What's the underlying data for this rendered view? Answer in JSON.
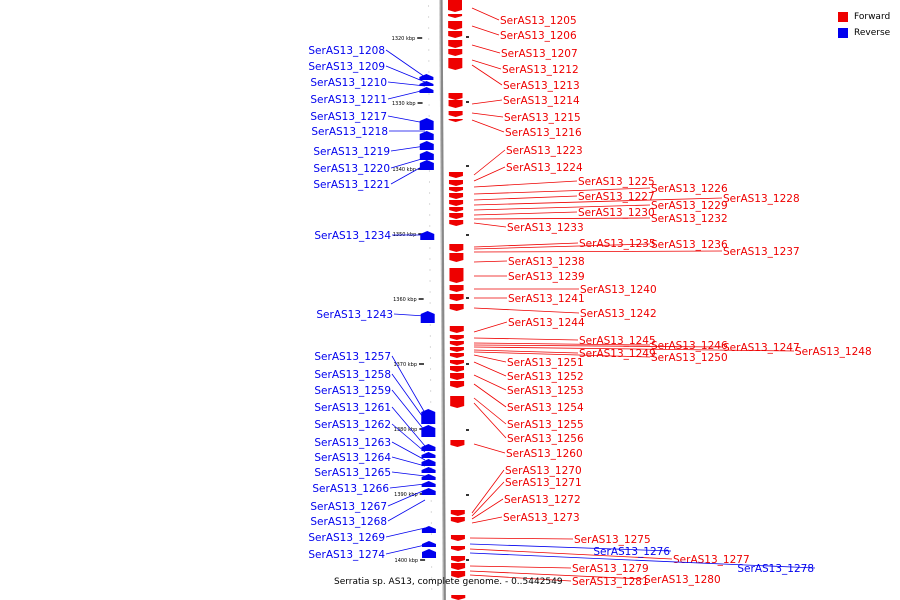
{
  "caption": "Serratia sp. AS13, complete genome. - 0..5442549",
  "legend": [
    {
      "label": "Forward",
      "color": "#ee0000"
    },
    {
      "label": "Reverse",
      "color": "#0000ee"
    }
  ],
  "colors": {
    "forward": "#ee0000",
    "reverse": "#0000ee",
    "backbone": "#888888"
  },
  "ticks": [
    "1320 kbp",
    "1330 kbp",
    "1340 kbp",
    "1350 kbp",
    "1360 kbp",
    "1370 kbp",
    "1380 kbp",
    "1390 kbp",
    "1400 kbp"
  ],
  "forward_genes": [
    "SerAS13_1205",
    "SerAS13_1206",
    "SerAS13_1207",
    "SerAS13_1212",
    "SerAS13_1213",
    "SerAS13_1214",
    "SerAS13_1215",
    "SerAS13_1216",
    "SerAS13_1223",
    "SerAS13_1224",
    "SerAS13_1225",
    "SerAS13_1226",
    "SerAS13_1227",
    "SerAS13_1228",
    "SerAS13_1229",
    "SerAS13_1230",
    "SerAS13_1232",
    "SerAS13_1233",
    "SerAS13_1235",
    "SerAS13_1236",
    "SerAS13_1237",
    "SerAS13_1238",
    "SerAS13_1239",
    "SerAS13_1240",
    "SerAS13_1241",
    "SerAS13_1242",
    "SerAS13_1244",
    "SerAS13_1245",
    "SerAS13_1246",
    "SerAS13_1247",
    "SerAS13_1248",
    "SerAS13_1249",
    "SerAS13_1250",
    "SerAS13_1251",
    "SerAS13_1252",
    "SerAS13_1253",
    "SerAS13_1254",
    "SerAS13_1255",
    "SerAS13_1256",
    "SerAS13_1260",
    "SerAS13_1270",
    "SerAS13_1271",
    "SerAS13_1272",
    "SerAS13_1273",
    "SerAS13_1275",
    "SerAS13_1277",
    "SerAS13_1279",
    "SerAS13_1280",
    "SerAS13_1281"
  ],
  "reverse_genes": [
    "SerAS13_1208",
    "SerAS13_1209",
    "SerAS13_1210",
    "SerAS13_1211",
    "SerAS13_1217",
    "SerAS13_1218",
    "SerAS13_1219",
    "SerAS13_1220",
    "SerAS13_1221",
    "SerAS13_1234",
    "SerAS13_1243",
    "SerAS13_1257",
    "SerAS13_1258",
    "SerAS13_1259",
    "SerAS13_1261",
    "SerAS13_1262",
    "SerAS13_1263",
    "SerAS13_1264",
    "SerAS13_1265",
    "SerAS13_1266",
    "SerAS13_1267",
    "SerAS13_1268",
    "SerAS13_1269",
    "SerAS13_1274",
    "SerAS13_1276",
    "SerAS13_1278"
  ]
}
